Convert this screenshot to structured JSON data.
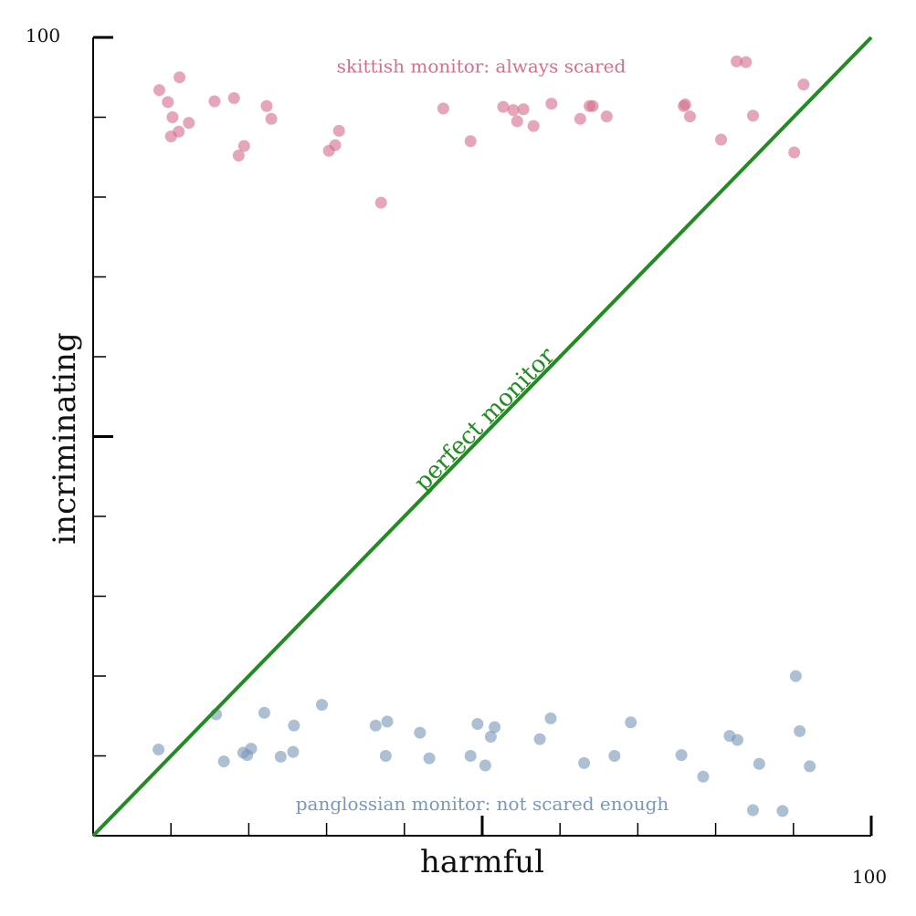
{
  "chart_data": {
    "type": "scatter",
    "xlabel": "harmful",
    "ylabel": "incriminating",
    "xlim": [
      0,
      100
    ],
    "ylim": [
      0,
      100
    ],
    "x_tick_labels": {
      "max": "100"
    },
    "y_tick_labels": {
      "max": "100"
    },
    "grid": false,
    "colors": {
      "skittish": "#d4708c",
      "panglossian": "#7a98b8",
      "perfect": "#228b22",
      "axis": "#000000"
    },
    "series": [
      {
        "key": "skittish",
        "points": [
          {
            "x": 8.5,
            "y": 93.4
          },
          {
            "x": 11.1,
            "y": 95.0
          },
          {
            "x": 9.6,
            "y": 91.9
          },
          {
            "x": 10.2,
            "y": 90.0
          },
          {
            "x": 12.3,
            "y": 89.3
          },
          {
            "x": 11.0,
            "y": 88.2
          },
          {
            "x": 10.0,
            "y": 87.6
          },
          {
            "x": 15.6,
            "y": 92.0
          },
          {
            "x": 18.1,
            "y": 92.4
          },
          {
            "x": 22.3,
            "y": 91.4
          },
          {
            "x": 22.9,
            "y": 89.8
          },
          {
            "x": 19.4,
            "y": 86.4
          },
          {
            "x": 18.7,
            "y": 85.2
          },
          {
            "x": 31.6,
            "y": 88.3
          },
          {
            "x": 31.1,
            "y": 86.5
          },
          {
            "x": 30.3,
            "y": 85.8
          },
          {
            "x": 37.0,
            "y": 79.3
          },
          {
            "x": 45.0,
            "y": 91.1
          },
          {
            "x": 48.5,
            "y": 87.0
          },
          {
            "x": 52.7,
            "y": 91.3
          },
          {
            "x": 54.0,
            "y": 90.9
          },
          {
            "x": 55.3,
            "y": 91.0
          },
          {
            "x": 54.5,
            "y": 89.5
          },
          {
            "x": 56.6,
            "y": 88.9
          },
          {
            "x": 58.9,
            "y": 91.7
          },
          {
            "x": 62.6,
            "y": 89.8
          },
          {
            "x": 63.8,
            "y": 91.4
          },
          {
            "x": 64.2,
            "y": 91.4
          },
          {
            "x": 66.0,
            "y": 90.1
          },
          {
            "x": 75.9,
            "y": 91.4
          },
          {
            "x": 76.1,
            "y": 91.6
          },
          {
            "x": 76.7,
            "y": 90.1
          },
          {
            "x": 80.7,
            "y": 87.2
          },
          {
            "x": 82.7,
            "y": 97.0
          },
          {
            "x": 83.9,
            "y": 96.9
          },
          {
            "x": 84.8,
            "y": 90.2
          },
          {
            "x": 90.1,
            "y": 85.6
          },
          {
            "x": 91.3,
            "y": 94.1
          }
        ]
      },
      {
        "key": "panglossian",
        "points": [
          {
            "x": 8.4,
            "y": 10.8
          },
          {
            "x": 15.8,
            "y": 15.2
          },
          {
            "x": 16.8,
            "y": 9.3
          },
          {
            "x": 19.3,
            "y": 10.4
          },
          {
            "x": 19.8,
            "y": 10.1
          },
          {
            "x": 20.3,
            "y": 10.9
          },
          {
            "x": 22.0,
            "y": 15.4
          },
          {
            "x": 24.1,
            "y": 9.9
          },
          {
            "x": 25.8,
            "y": 13.8
          },
          {
            "x": 25.7,
            "y": 10.5
          },
          {
            "x": 29.4,
            "y": 16.4
          },
          {
            "x": 36.3,
            "y": 13.8
          },
          {
            "x": 37.8,
            "y": 14.3
          },
          {
            "x": 37.6,
            "y": 10.0
          },
          {
            "x": 42.0,
            "y": 12.9
          },
          {
            "x": 43.2,
            "y": 9.7
          },
          {
            "x": 48.5,
            "y": 10.0
          },
          {
            "x": 49.4,
            "y": 14.0
          },
          {
            "x": 50.4,
            "y": 8.8
          },
          {
            "x": 51.1,
            "y": 12.4
          },
          {
            "x": 51.6,
            "y": 13.6
          },
          {
            "x": 57.4,
            "y": 12.1
          },
          {
            "x": 58.8,
            "y": 14.7
          },
          {
            "x": 63.1,
            "y": 9.1
          },
          {
            "x": 67.0,
            "y": 10.0
          },
          {
            "x": 69.1,
            "y": 14.2
          },
          {
            "x": 75.6,
            "y": 10.1
          },
          {
            "x": 78.4,
            "y": 7.4
          },
          {
            "x": 81.8,
            "y": 12.5
          },
          {
            "x": 82.8,
            "y": 12.0
          },
          {
            "x": 84.8,
            "y": 3.2
          },
          {
            "x": 85.6,
            "y": 9.0
          },
          {
            "x": 88.6,
            "y": 3.1
          },
          {
            "x": 90.3,
            "y": 20.0
          },
          {
            "x": 90.8,
            "y": 13.1
          },
          {
            "x": 92.1,
            "y": 8.7
          }
        ]
      }
    ],
    "reference_line": {
      "from": [
        0,
        0
      ],
      "to": [
        100,
        100
      ]
    },
    "annotations": {
      "skittish": {
        "text": "skittish monitor: always scared",
        "x": 50,
        "y": 96.4
      },
      "panglossian": {
        "text": "panglossian monitor: not scared enough",
        "x": 50,
        "y": 4.0
      },
      "perfect": {
        "text": "perfect monitor",
        "x": 51.0,
        "y": 51.5,
        "angle": -45.7
      }
    }
  }
}
